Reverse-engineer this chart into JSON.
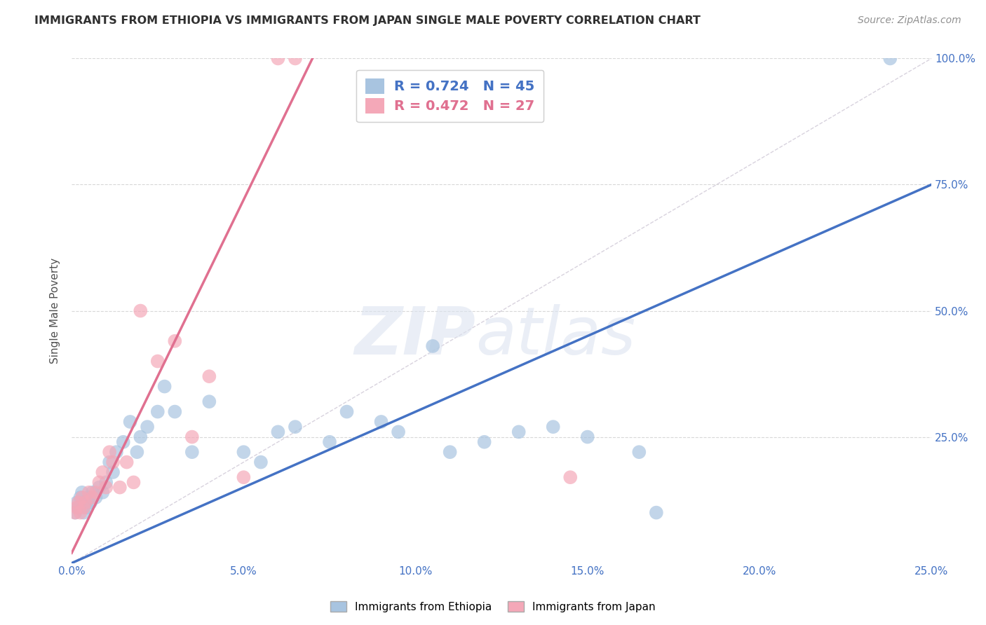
{
  "title": "IMMIGRANTS FROM ETHIOPIA VS IMMIGRANTS FROM JAPAN SINGLE MALE POVERTY CORRELATION CHART",
  "source": "Source: ZipAtlas.com",
  "ylabel": "Single Male Poverty",
  "x_tick_labels": [
    "0.0%",
    "5.0%",
    "10.0%",
    "15.0%",
    "20.0%",
    "25.0%"
  ],
  "x_tick_values": [
    0.0,
    5.0,
    10.0,
    15.0,
    20.0,
    25.0
  ],
  "y_tick_labels": [
    "25.0%",
    "50.0%",
    "75.0%",
    "100.0%"
  ],
  "y_tick_values": [
    25.0,
    50.0,
    75.0,
    100.0
  ],
  "xlim": [
    0.0,
    25.0
  ],
  "ylim": [
    0.0,
    100.0
  ],
  "legend_ethiopia_label": "R = 0.724   N = 45",
  "legend_japan_label": "R = 0.472   N = 27",
  "legend_bottom_ethiopia": "Immigrants from Ethiopia",
  "legend_bottom_japan": "Immigrants from Japan",
  "ethiopia_color": "#a8c4e0",
  "japan_color": "#f4a8b8",
  "ethiopia_line_color": "#4472c4",
  "japan_line_color": "#e07090",
  "diag_line_color": "#c8c0d0",
  "ethiopia_r": 0.724,
  "ethiopia_n": 45,
  "japan_r": 0.472,
  "japan_n": 27,
  "ethiopia_scatter_x": [
    0.1,
    0.15,
    0.2,
    0.25,
    0.3,
    0.35,
    0.4,
    0.45,
    0.5,
    0.55,
    0.6,
    0.7,
    0.8,
    0.9,
    1.0,
    1.1,
    1.2,
    1.3,
    1.5,
    1.7,
    1.9,
    2.0,
    2.2,
    2.5,
    2.7,
    3.0,
    3.5,
    4.0,
    5.0,
    5.5,
    6.0,
    6.5,
    7.5,
    8.0,
    9.0,
    9.5,
    10.5,
    11.0,
    12.0,
    13.0,
    14.0,
    15.0,
    16.5,
    17.0,
    23.8
  ],
  "ethiopia_scatter_y": [
    10.0,
    12.0,
    11.0,
    13.0,
    14.0,
    10.0,
    12.0,
    11.0,
    13.0,
    12.0,
    14.0,
    13.0,
    15.0,
    14.0,
    16.0,
    20.0,
    18.0,
    22.0,
    24.0,
    28.0,
    22.0,
    25.0,
    27.0,
    30.0,
    35.0,
    30.0,
    22.0,
    32.0,
    22.0,
    20.0,
    26.0,
    27.0,
    24.0,
    30.0,
    28.0,
    26.0,
    43.0,
    22.0,
    24.0,
    26.0,
    27.0,
    25.0,
    22.0,
    10.0,
    100.0
  ],
  "japan_scatter_x": [
    0.1,
    0.15,
    0.2,
    0.25,
    0.3,
    0.35,
    0.4,
    0.5,
    0.6,
    0.7,
    0.8,
    0.9,
    1.0,
    1.1,
    1.2,
    1.4,
    1.6,
    1.8,
    2.0,
    2.5,
    3.0,
    3.5,
    4.0,
    5.0,
    6.0,
    6.5,
    14.5
  ],
  "japan_scatter_y": [
    10.0,
    11.0,
    12.0,
    10.0,
    13.0,
    11.0,
    12.0,
    14.0,
    13.0,
    14.0,
    16.0,
    18.0,
    15.0,
    22.0,
    20.0,
    15.0,
    20.0,
    16.0,
    50.0,
    40.0,
    44.0,
    25.0,
    37.0,
    17.0,
    100.0,
    100.0,
    17.0
  ],
  "ethiopia_line_x0": 0.0,
  "ethiopia_line_y0": 0.0,
  "ethiopia_line_x1": 25.0,
  "ethiopia_line_y1": 75.0,
  "japan_line_x0": 0.0,
  "japan_line_y0": 2.0,
  "japan_line_x1": 7.0,
  "japan_line_y1": 100.0,
  "watermark_zip": "ZIP",
  "watermark_atlas": "atlas",
  "background_color": "#ffffff",
  "grid_color": "#d8d8d8",
  "title_color": "#303030",
  "axis_label_color": "#505050",
  "tick_color": "#4472c4",
  "source_color": "#909090"
}
